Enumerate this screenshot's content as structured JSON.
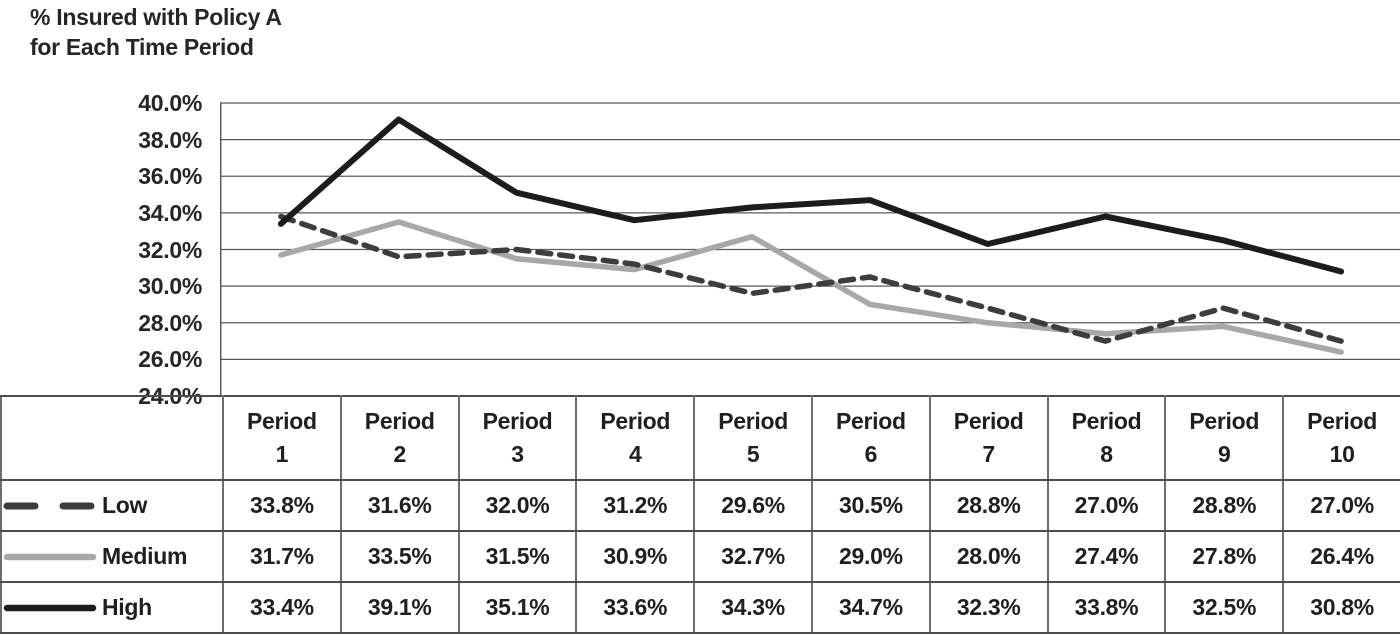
{
  "title": {
    "line1": "% Insured with Policy A",
    "line2": "for Each Time Period"
  },
  "colors": {
    "background": "#ffffff",
    "gridline": "#5a5a5a",
    "table_border_dark": "#4d4d4d",
    "table_border_light": "#6e6e6e",
    "text": "#262626"
  },
  "chart_data": {
    "type": "line",
    "title": "% Insured with Policy A for Each Time Period",
    "xlabel": "",
    "ylabel": "",
    "categories": [
      "Period 1",
      "Period 2",
      "Period 3",
      "Period 4",
      "Period 5",
      "Period 6",
      "Period 7",
      "Period 8",
      "Period 9",
      "Period 10"
    ],
    "series": [
      {
        "name": "Low",
        "color": "#3d3d3d",
        "dash": "13 9",
        "stroke_width": 5.5,
        "values": [
          33.8,
          31.6,
          32.0,
          31.2,
          29.6,
          30.5,
          28.8,
          27.0,
          28.8,
          27.0
        ]
      },
      {
        "name": "Medium",
        "color": "#a8a8a8",
        "dash": "",
        "stroke_width": 5.5,
        "values": [
          31.7,
          33.5,
          31.5,
          30.9,
          32.7,
          29.0,
          28.0,
          27.4,
          27.8,
          26.4
        ]
      },
      {
        "name": "High",
        "color": "#1c1c1c",
        "dash": "",
        "stroke_width": 6,
        "values": [
          33.4,
          39.1,
          35.1,
          33.6,
          34.3,
          34.7,
          32.3,
          33.8,
          32.5,
          30.8
        ]
      }
    ],
    "ylim": [
      24,
      40
    ],
    "ytick_step": 2,
    "ytick_labels": [
      "40.0%",
      "38.0%",
      "36.0%",
      "34.0%",
      "32.0%",
      "30.0%",
      "28.0%",
      "26.0%",
      "24.0%"
    ],
    "grid": "horizontal",
    "legend_position": "table-left",
    "value_format": "one-decimal-percent"
  }
}
